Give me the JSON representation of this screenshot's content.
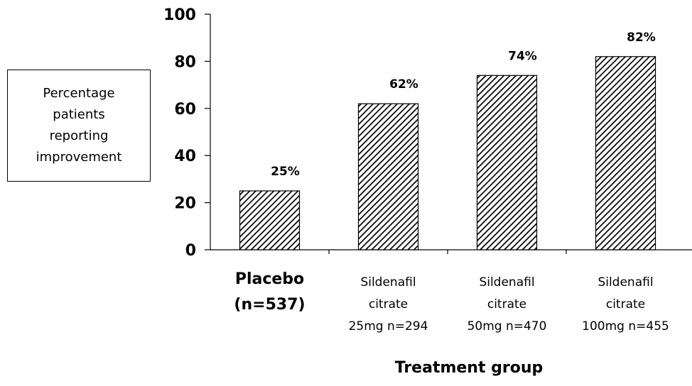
{
  "chart_data": {
    "type": "bar",
    "categories": [
      [
        "Placebo",
        "(n=537)"
      ],
      [
        "Sildenafil",
        "citrate",
        "25mg n=294"
      ],
      [
        "Sildenafil",
        "citrate",
        "50mg n=470"
      ],
      [
        "Sildenafil",
        "citrate",
        "100mg n=455"
      ]
    ],
    "values": [
      25,
      62,
      74,
      82
    ],
    "data_labels": [
      "25%",
      "62%",
      "74%",
      "82%"
    ],
    "ylabel_lines": [
      "Percentage",
      "patients",
      "reporting",
      "improvement"
    ],
    "xlabel": "Treatment group",
    "ylim": [
      0,
      100
    ],
    "yticks": [
      0,
      20,
      40,
      60,
      80,
      100
    ],
    "bar_fill": "diagonal-hatch",
    "colors": {
      "hatch": "#000000",
      "background": "#ffffff"
    },
    "grid": false,
    "legend": "none"
  }
}
